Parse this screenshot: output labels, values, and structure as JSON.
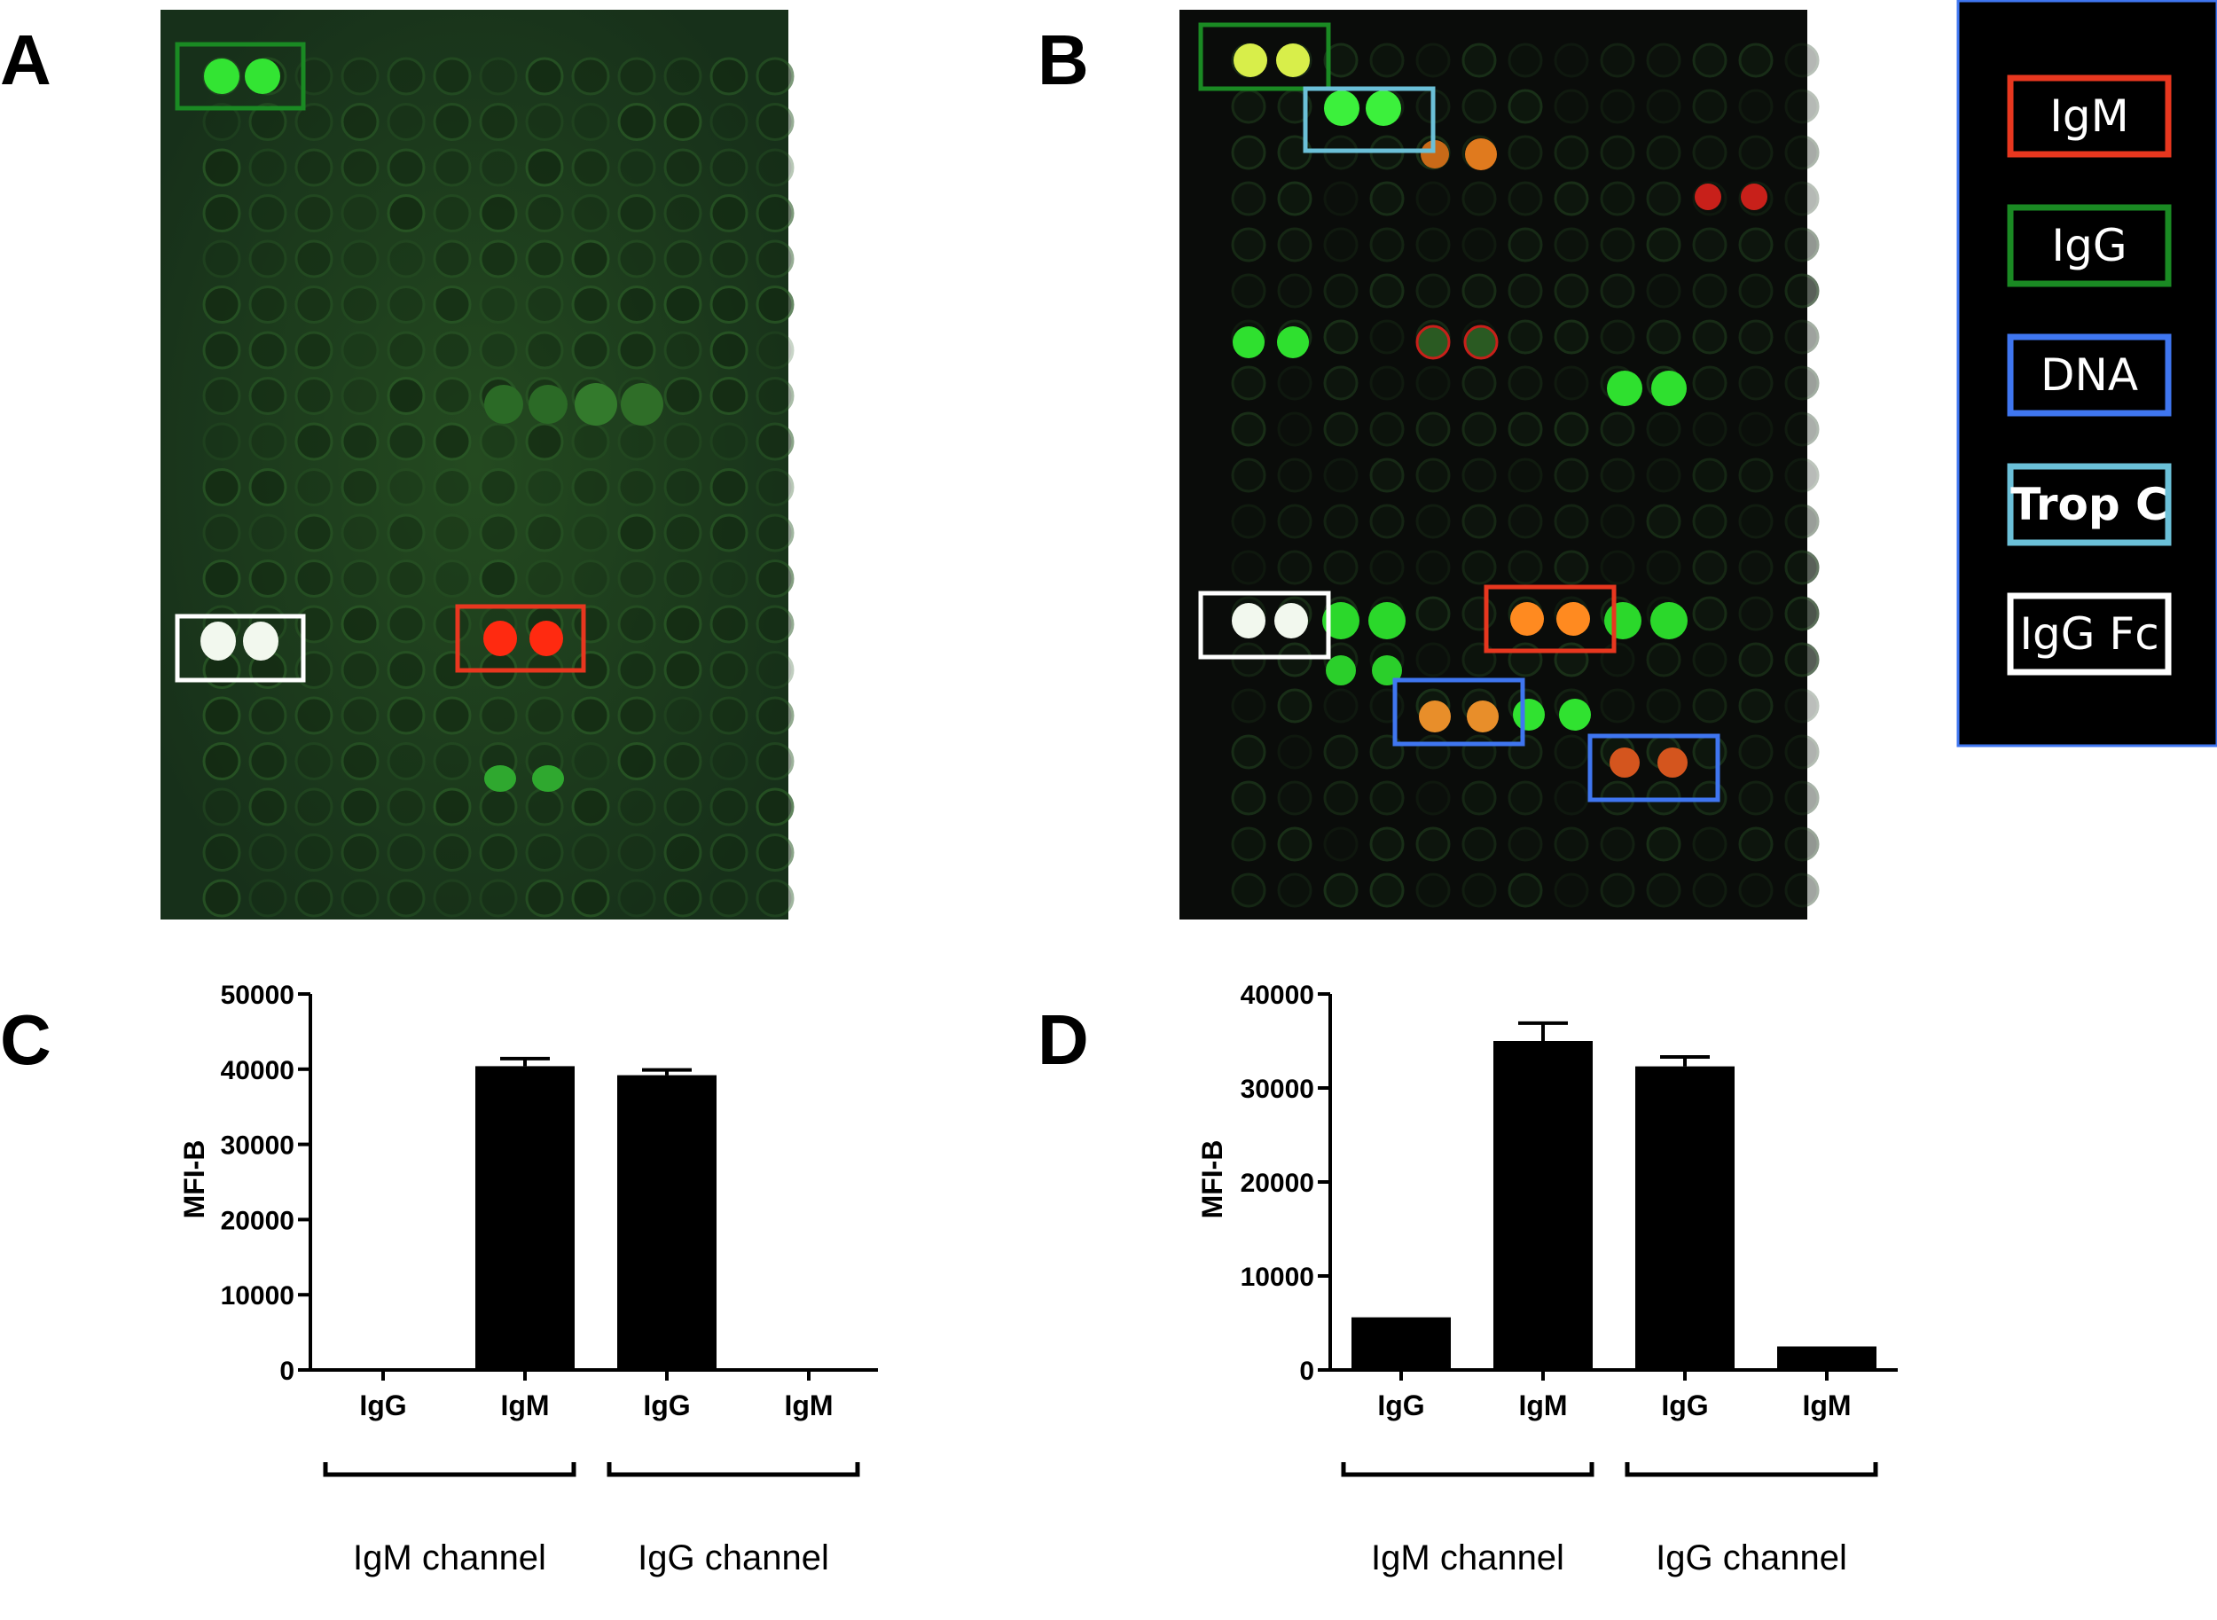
{
  "panels": {
    "a": "A",
    "b": "B",
    "c": "C",
    "d": "D"
  },
  "legend": {
    "items": [
      {
        "label": "IgM",
        "color": "#e8371f",
        "bold": false
      },
      {
        "label": "IgG",
        "color": "#1a8a23",
        "bold": false
      },
      {
        "label": "DNA",
        "color": "#3f76f0",
        "bold": false
      },
      {
        "label": "Trop C",
        "color": "#6bc0d8",
        "bold": true
      },
      {
        "label": "IgG Fc",
        "color": "#ffffff",
        "bold": false
      }
    ]
  },
  "arrays": {
    "a_background": "#1c3a18",
    "b_background": "#0a0c0a",
    "spot_green": "#2fe02f",
    "spot_red": "#ff2a10",
    "spot_orange": "#ff8a20",
    "spot_white": "#f2f8ee"
  },
  "chart_data": [
    {
      "type": "bar",
      "panel": "C",
      "categories": [
        "IgG",
        "IgM",
        "IgG",
        "IgM"
      ],
      "values": [
        0,
        40400,
        39200,
        0
      ],
      "errors": [
        0,
        1000,
        700,
        0
      ],
      "ylabel": "MFI-B",
      "ylim": [
        0,
        50000
      ],
      "yticks": [
        0,
        10000,
        20000,
        30000,
        40000,
        50000
      ],
      "groups": [
        "IgM channel",
        "IgG channel"
      ],
      "bar_color": "#000000"
    },
    {
      "type": "bar",
      "panel": "D",
      "categories": [
        "IgG",
        "IgM",
        "IgG",
        "IgM"
      ],
      "values": [
        5600,
        35000,
        32300,
        2500
      ],
      "errors": [
        0,
        1900,
        1000,
        0
      ],
      "ylabel": "MFI-B",
      "ylim": [
        0,
        40000
      ],
      "yticks": [
        0,
        10000,
        20000,
        30000,
        40000
      ],
      "groups": [
        "IgM channel",
        "IgG channel"
      ],
      "bar_color": "#000000"
    }
  ]
}
